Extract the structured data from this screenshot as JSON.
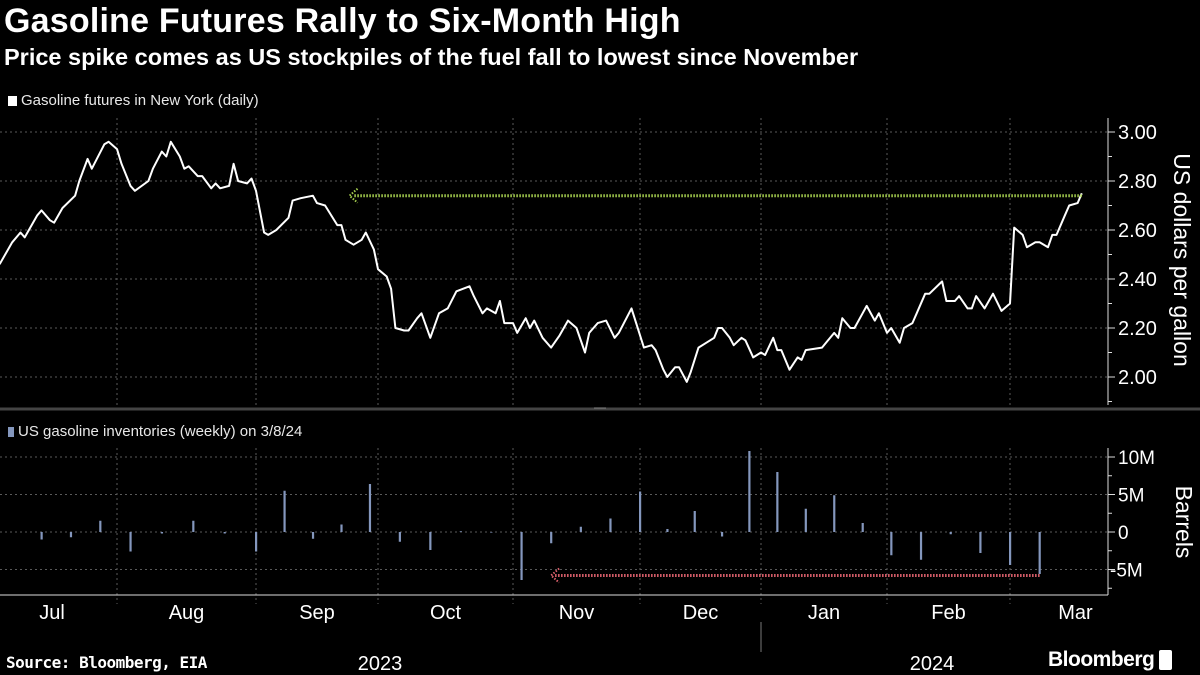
{
  "header": {
    "title": "Gasoline Futures Rally to Six-Month High",
    "subtitle": "Price spike comes as US stockpiles of the fuel fall to lowest since November"
  },
  "footer": {
    "source": "Source: Bloomberg, EIA",
    "brand": "Bloomberg"
  },
  "colors": {
    "background": "#000000",
    "price_line": "#ffffff",
    "bars": "#8497bd",
    "green_arrow": "#a6cf4f",
    "red_arrow": "#e0626e",
    "grid": "#5a5a5a"
  },
  "chart_data": [
    {
      "type": "line",
      "legend": "Gasoline futures in New York (daily)",
      "ylabel": "US dollars per gallon",
      "ylim": [
        1.89,
        3.06
      ],
      "yticks": [
        "3.00",
        "2.80",
        "2.60",
        "2.40",
        "2.20",
        "2.00"
      ],
      "grid": true,
      "annotation": {
        "type": "dotted-arrow",
        "from": "2024-03-18",
        "to": "2023-09-24",
        "value": 2.74,
        "color": "#a6cf4f"
      },
      "series": [
        {
          "points": [
            [
              "2023-07-04",
              2.46
            ],
            [
              "2023-07-06",
              2.52
            ],
            [
              "2023-07-07",
              2.55
            ],
            [
              "2023-07-09",
              2.59
            ],
            [
              "2023-07-10",
              2.57
            ],
            [
              "2023-07-13",
              2.66
            ],
            [
              "2023-07-14",
              2.68
            ],
            [
              "2023-07-16",
              2.64
            ],
            [
              "2023-07-17",
              2.63
            ],
            [
              "2023-07-19",
              2.69
            ],
            [
              "2023-07-22",
              2.74
            ],
            [
              "2023-07-23",
              2.8
            ],
            [
              "2023-07-25",
              2.89
            ],
            [
              "2023-07-26",
              2.85
            ],
            [
              "2023-07-29",
              2.95
            ],
            [
              "2023-07-30",
              2.96
            ],
            [
              "2023-08-01",
              2.93
            ],
            [
              "2023-08-02",
              2.87
            ],
            [
              "2023-08-04",
              2.78
            ],
            [
              "2023-08-05",
              2.76
            ],
            [
              "2023-08-08",
              2.8
            ],
            [
              "2023-08-09",
              2.85
            ],
            [
              "2023-08-11",
              2.92
            ],
            [
              "2023-08-12",
              2.9
            ],
            [
              "2023-08-13",
              2.96
            ],
            [
              "2023-08-15",
              2.9
            ],
            [
              "2023-08-16",
              2.85
            ],
            [
              "2023-08-17",
              2.86
            ],
            [
              "2023-08-19",
              2.82
            ],
            [
              "2023-08-20",
              2.82
            ],
            [
              "2023-08-22",
              2.77
            ],
            [
              "2023-08-23",
              2.79
            ],
            [
              "2023-08-24",
              2.77
            ],
            [
              "2023-08-26",
              2.78
            ],
            [
              "2023-08-27",
              2.87
            ],
            [
              "2023-08-28",
              2.8
            ],
            [
              "2023-08-30",
              2.79
            ],
            [
              "2023-08-31",
              2.81
            ],
            [
              "2023-09-01",
              2.76
            ],
            [
              "2023-09-03",
              2.59
            ],
            [
              "2023-09-04",
              2.58
            ],
            [
              "2023-09-06",
              2.6
            ],
            [
              "2023-09-09",
              2.65
            ],
            [
              "2023-09-10",
              2.72
            ],
            [
              "2023-09-12",
              2.73
            ],
            [
              "2023-09-15",
              2.74
            ],
            [
              "2023-09-16",
              2.71
            ],
            [
              "2023-09-18",
              2.7
            ],
            [
              "2023-09-21",
              2.62
            ],
            [
              "2023-09-22",
              2.62
            ],
            [
              "2023-09-23",
              2.56
            ],
            [
              "2023-09-25",
              2.54
            ],
            [
              "2023-09-27",
              2.56
            ],
            [
              "2023-09-28",
              2.59
            ],
            [
              "2023-09-30",
              2.52
            ],
            [
              "2023-10-01",
              2.44
            ],
            [
              "2023-10-03",
              2.41
            ],
            [
              "2023-10-04",
              2.36
            ],
            [
              "2023-10-05",
              2.2
            ],
            [
              "2023-10-07",
              2.19
            ],
            [
              "2023-10-08",
              2.19
            ],
            [
              "2023-10-10",
              2.24
            ],
            [
              "2023-10-11",
              2.26
            ],
            [
              "2023-10-13",
              2.16
            ],
            [
              "2023-10-15",
              2.26
            ],
            [
              "2023-10-17",
              2.28
            ],
            [
              "2023-10-19",
              2.35
            ],
            [
              "2023-10-22",
              2.37
            ],
            [
              "2023-10-23",
              2.33
            ],
            [
              "2023-10-25",
              2.26
            ],
            [
              "2023-10-26",
              2.28
            ],
            [
              "2023-10-28",
              2.26
            ],
            [
              "2023-10-29",
              2.31
            ],
            [
              "2023-10-30",
              2.22
            ],
            [
              "2023-11-01",
              2.22
            ],
            [
              "2023-11-02",
              2.18
            ],
            [
              "2023-11-04",
              2.24
            ],
            [
              "2023-11-05",
              2.2
            ],
            [
              "2023-11-06",
              2.23
            ],
            [
              "2023-11-08",
              2.16
            ],
            [
              "2023-11-10",
              2.12
            ],
            [
              "2023-11-12",
              2.17
            ],
            [
              "2023-11-14",
              2.23
            ],
            [
              "2023-11-16",
              2.2
            ],
            [
              "2023-11-18",
              2.1
            ],
            [
              "2023-11-19",
              2.18
            ],
            [
              "2023-11-21",
              2.22
            ],
            [
              "2023-11-23",
              2.23
            ],
            [
              "2023-11-25",
              2.16
            ],
            [
              "2023-11-26",
              2.18
            ],
            [
              "2023-11-29",
              2.28
            ],
            [
              "2023-12-02",
              2.12
            ],
            [
              "2023-12-04",
              2.13
            ],
            [
              "2023-12-05",
              2.11
            ],
            [
              "2023-12-07",
              2.03
            ],
            [
              "2023-12-08",
              2.0
            ],
            [
              "2023-12-10",
              2.04
            ],
            [
              "2023-12-11",
              2.04
            ],
            [
              "2023-12-13",
              1.98
            ],
            [
              "2023-12-14",
              2.02
            ],
            [
              "2023-12-16",
              2.12
            ],
            [
              "2023-12-18",
              2.14
            ],
            [
              "2023-12-20",
              2.16
            ],
            [
              "2023-12-21",
              2.2
            ],
            [
              "2023-12-22",
              2.2
            ],
            [
              "2023-12-24",
              2.16
            ],
            [
              "2023-12-25",
              2.13
            ],
            [
              "2023-12-27",
              2.16
            ],
            [
              "2023-12-28",
              2.15
            ],
            [
              "2023-12-30",
              2.08
            ],
            [
              "2024-01-01",
              2.1
            ],
            [
              "2024-01-02",
              2.09
            ],
            [
              "2024-01-04",
              2.16
            ],
            [
              "2024-01-05",
              2.11
            ],
            [
              "2024-01-06",
              2.11
            ],
            [
              "2024-01-08",
              2.03
            ],
            [
              "2024-01-10",
              2.08
            ],
            [
              "2024-01-11",
              2.07
            ],
            [
              "2024-01-12",
              2.11
            ],
            [
              "2024-01-16",
              2.12
            ],
            [
              "2024-01-17",
              2.14
            ],
            [
              "2024-01-19",
              2.18
            ],
            [
              "2024-01-20",
              2.16
            ],
            [
              "2024-01-21",
              2.24
            ],
            [
              "2024-01-23",
              2.2
            ],
            [
              "2024-01-24",
              2.2
            ],
            [
              "2024-01-26",
              2.26
            ],
            [
              "2024-01-27",
              2.29
            ],
            [
              "2024-01-29",
              2.23
            ],
            [
              "2024-01-30",
              2.26
            ],
            [
              "2024-02-01",
              2.18
            ],
            [
              "2024-02-02",
              2.2
            ],
            [
              "2024-02-04",
              2.14
            ],
            [
              "2024-02-05",
              2.2
            ],
            [
              "2024-02-07",
              2.22
            ],
            [
              "2024-02-08",
              2.26
            ],
            [
              "2024-02-10",
              2.34
            ],
            [
              "2024-02-11",
              2.34
            ],
            [
              "2024-02-14",
              2.39
            ],
            [
              "2024-02-15",
              2.31
            ],
            [
              "2024-02-17",
              2.31
            ],
            [
              "2024-02-18",
              2.33
            ],
            [
              "2024-02-20",
              2.28
            ],
            [
              "2024-02-21",
              2.28
            ],
            [
              "2024-02-22",
              2.33
            ],
            [
              "2024-02-24",
              2.28
            ],
            [
              "2024-02-26",
              2.34
            ],
            [
              "2024-02-28",
              2.27
            ],
            [
              "2024-03-01",
              2.3
            ],
            [
              "2024-03-02",
              2.61
            ],
            [
              "2024-03-04",
              2.58
            ],
            [
              "2024-03-05",
              2.53
            ],
            [
              "2024-03-07",
              2.55
            ],
            [
              "2024-03-08",
              2.55
            ],
            [
              "2024-03-10",
              2.53
            ],
            [
              "2024-03-11",
              2.58
            ],
            [
              "2024-03-12",
              2.58
            ],
            [
              "2024-03-14",
              2.66
            ],
            [
              "2024-03-15",
              2.7
            ],
            [
              "2024-03-17",
              2.71
            ],
            [
              "2024-03-18",
              2.75
            ]
          ]
        }
      ]
    },
    {
      "type": "bar",
      "legend": "US gasoline inventories (weekly) on 3/8/24",
      "ylabel": "Barrels",
      "ylim": [
        -8.4,
        11.2
      ],
      "yticks": [
        "10M",
        "5M",
        "0",
        "-5M"
      ],
      "grid": true,
      "annotation": {
        "type": "dotted-arrow",
        "from": "2024-03-08",
        "to": "2023-11-10",
        "value": -5.8,
        "color": "#e0626e"
      },
      "unit": "million barrels",
      "categories": [
        "2023-07-14",
        "2023-07-21",
        "2023-07-28",
        "2023-08-04",
        "2023-08-11",
        "2023-08-18",
        "2023-08-25",
        "2023-09-01",
        "2023-09-08",
        "2023-09-15",
        "2023-09-22",
        "2023-09-29",
        "2023-10-06",
        "2023-10-13",
        "2023-10-20",
        "2023-10-27",
        "2023-11-03",
        "2023-11-10",
        "2023-11-17",
        "2023-11-24",
        "2023-12-01",
        "2023-12-08",
        "2023-12-15",
        "2023-12-22",
        "2023-12-29",
        "2024-01-05",
        "2024-01-12",
        "2024-01-19",
        "2024-01-26",
        "2024-02-02",
        "2024-02-09",
        "2024-02-16",
        "2024-02-23",
        "2024-03-01",
        "2024-03-08"
      ],
      "values": [
        -1.0,
        -0.7,
        1.5,
        -2.6,
        -0.2,
        1.5,
        -0.2,
        -2.6,
        5.5,
        -0.9,
        1.0,
        6.4,
        -1.3,
        -2.4,
        0.1,
        0.0,
        -6.4,
        -1.5,
        0.7,
        1.8,
        5.4,
        0.4,
        2.8,
        -0.6,
        10.8,
        8.0,
        3.1,
        4.9,
        1.2,
        -3.1,
        -3.7,
        -0.3,
        -2.8,
        -4.4,
        -5.6
      ]
    }
  ],
  "x_axis": {
    "months": [
      "Jul",
      "Aug",
      "Sep",
      "Oct",
      "Nov",
      "Dec",
      "Jan",
      "Feb",
      "Mar"
    ],
    "years": [
      "2023",
      "2024"
    ]
  }
}
